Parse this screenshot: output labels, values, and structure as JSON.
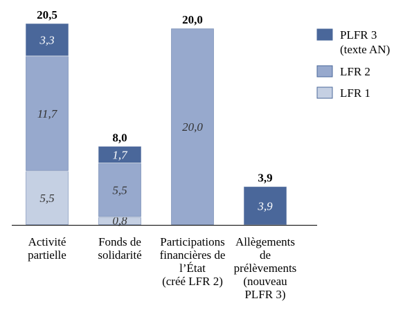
{
  "chart_data": {
    "type": "bar",
    "stacked": true,
    "categories": [
      [
        "Activité",
        "partielle"
      ],
      [
        "Fonds de",
        "solidarité"
      ],
      [
        "Participations",
        "financières de",
        "l’État",
        "(créé LFR 2)"
      ],
      [
        "Allègements",
        "de",
        "prélèvements",
        "(nouveau",
        "PLFR 3)"
      ]
    ],
    "series": [
      {
        "name": "LFR 1",
        "color": "#c5d0e3",
        "values": [
          5.5,
          0.8,
          null,
          null
        ],
        "labels": [
          "5,5",
          "0,8",
          "",
          ""
        ]
      },
      {
        "name": "LFR 2",
        "color": "#97a9cd",
        "values": [
          11.7,
          5.5,
          20.0,
          null
        ],
        "labels": [
          "11,7",
          "5,5",
          "20,0",
          ""
        ]
      },
      {
        "name": "PLFR 3 (texte AN)",
        "legend_lines": [
          "PLFR 3",
          "(texte AN)"
        ],
        "color": "#4a679a",
        "values": [
          3.3,
          1.7,
          null,
          3.9
        ],
        "labels": [
          "3,3",
          "1,7",
          "",
          "3,9"
        ]
      }
    ],
    "totals": [
      "20,5",
      "8,0",
      "20,0",
      "3,9"
    ],
    "ylim": [
      0,
      20.5
    ],
    "legend_position": "right",
    "grid": false
  }
}
